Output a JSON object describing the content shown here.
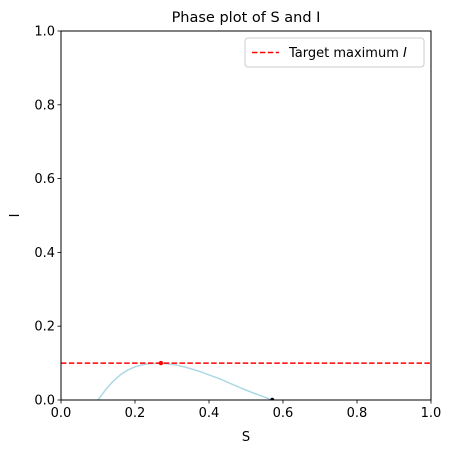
{
  "chart_data": {
    "type": "line",
    "title": "Phase plot of S and I",
    "xlabel": "S",
    "ylabel": "I",
    "xlim": [
      0.0,
      1.0
    ],
    "ylim": [
      0.0,
      1.0
    ],
    "x_ticks": [
      "0.0",
      "0.2",
      "0.4",
      "0.6",
      "0.8",
      "1.0"
    ],
    "y_ticks": [
      "0.0",
      "0.2",
      "0.4",
      "0.6",
      "0.8",
      "1.0"
    ],
    "grid": false,
    "legend": {
      "placement": "top-right",
      "entries": [
        {
          "label_text": "Target maximum ",
          "label_italic": "I",
          "style": "dashed",
          "color": "#ff0000"
        }
      ]
    },
    "series": [
      {
        "color": "#add8e6",
        "style": "solid",
        "x": [
          0.571,
          0.55,
          0.52,
          0.49,
          0.46,
          0.43,
          0.4,
          0.37,
          0.34,
          0.31,
          0.28,
          0.26,
          0.24,
          0.22,
          0.2,
          0.18,
          0.16,
          0.14,
          0.12,
          0.11,
          0.1
        ],
        "y": [
          0.0,
          0.0075,
          0.019,
          0.031,
          0.044,
          0.057,
          0.068,
          0.079,
          0.088,
          0.095,
          0.099,
          0.0995,
          0.0985,
          0.0955,
          0.09,
          0.081,
          0.068,
          0.05,
          0.027,
          0.0135,
          0.0
        ]
      }
    ],
    "reference_lines": [
      {
        "orientation": "horizontal",
        "y": 0.1,
        "color": "#ff0000",
        "style": "dashed"
      }
    ],
    "markers": [
      {
        "x": 0.27,
        "y": 0.1,
        "color": "#ff0000"
      },
      {
        "x": 0.571,
        "y": 0.0,
        "color": "#000000"
      }
    ]
  }
}
